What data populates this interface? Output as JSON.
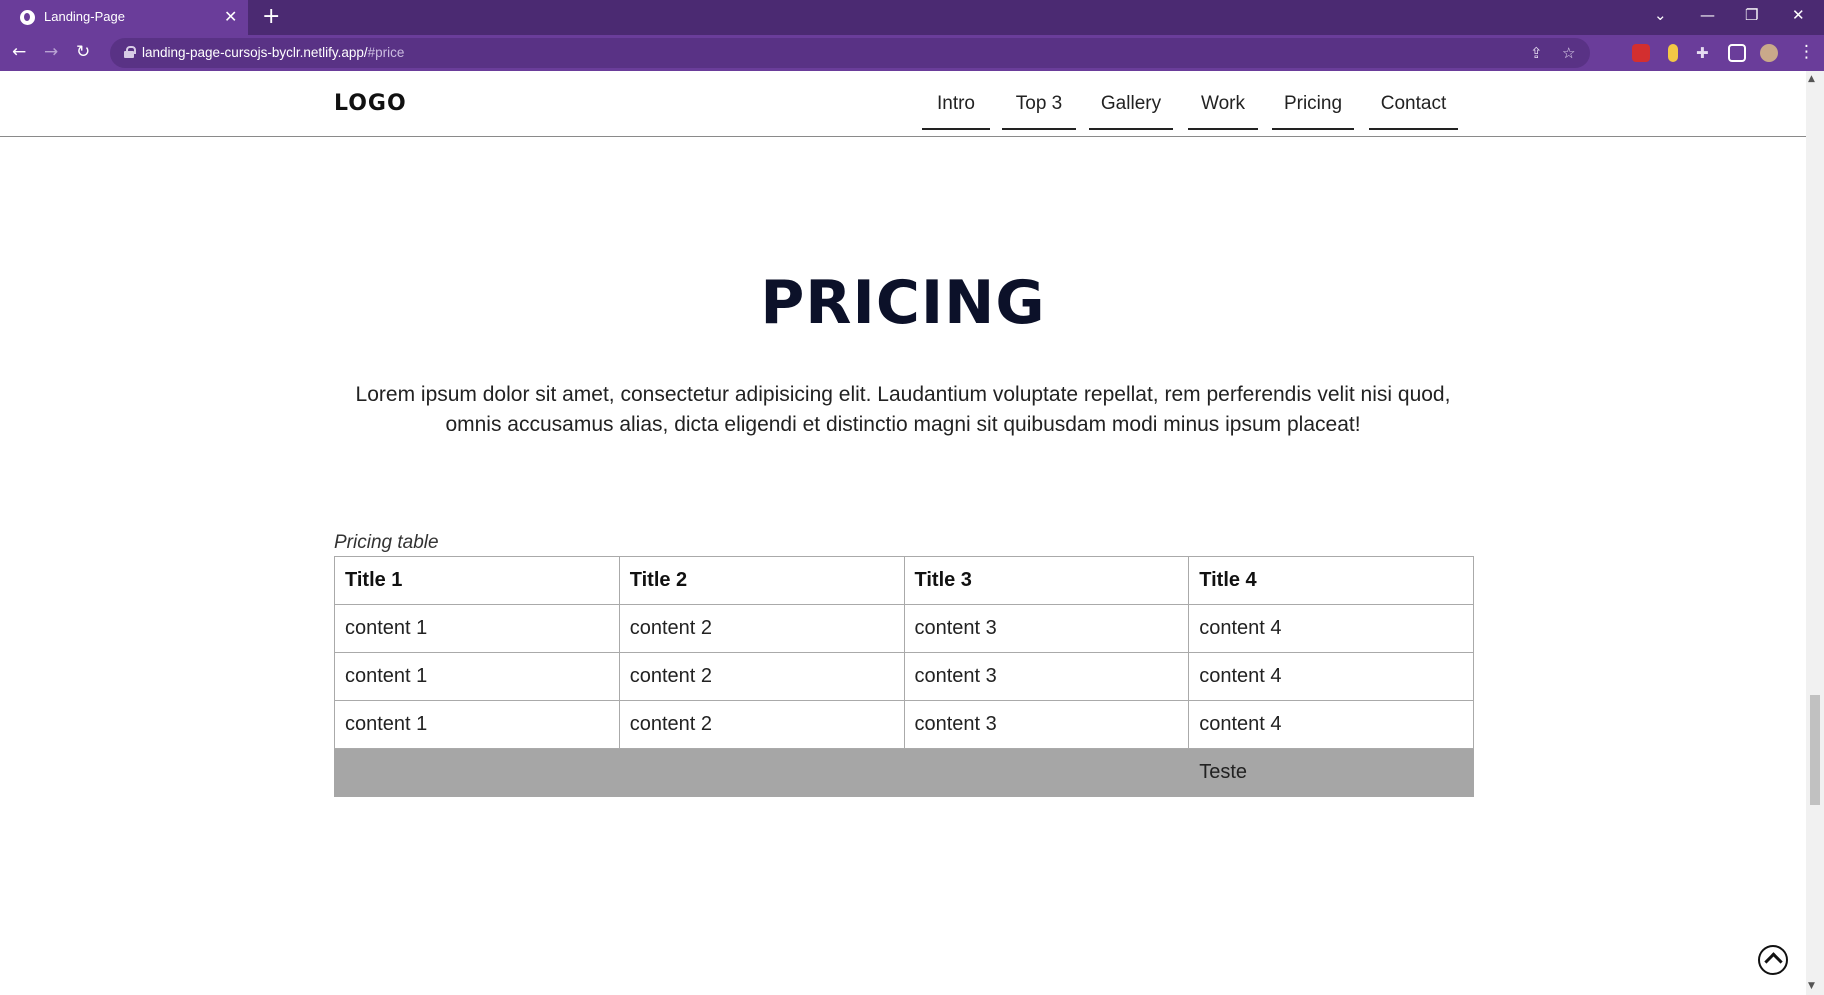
{
  "browser": {
    "tab_title": "Landing-Page",
    "tab_close": "✕",
    "new_tab": "+",
    "url_host": "landing-page-cursojs-byclr.netlify.app/",
    "url_path": "#price",
    "back": "←",
    "forward": "→",
    "reload": "↻",
    "tab_list": "⌄",
    "minimize": "—",
    "restore": "❐",
    "close": "✕",
    "menu": "⋮"
  },
  "header": {
    "logo": "LOGO",
    "nav": [
      {
        "label": "Intro"
      },
      {
        "label": "Top 3"
      },
      {
        "label": "Gallery"
      },
      {
        "label": "Work"
      },
      {
        "label": "Pricing"
      },
      {
        "label": "Contact"
      }
    ]
  },
  "section": {
    "title": "PRICING",
    "lead": "Lorem ipsum dolor sit amet, consectetur adipisicing elit. Laudantium voluptate repellat, rem perferendis velit nisi quod, omnis accusamus alias, dicta eligendi et distinctio magni sit quibusdam modi minus ipsum placeat!"
  },
  "table": {
    "caption": "Pricing table",
    "headers": [
      "Title 1",
      "Title 2",
      "Title 3",
      "Title 4"
    ],
    "rows": [
      [
        "content 1",
        "content 2",
        "content 3",
        "content 4"
      ],
      [
        "content 1",
        "content 2",
        "content 3",
        "content 4"
      ],
      [
        "content 1",
        "content 2",
        "content 3",
        "content 4"
      ]
    ],
    "footer": "Teste"
  },
  "colors": {
    "browser_frame": "#4b2a72",
    "toolbar": "#6a3d9a",
    "title_text": "#0c1129",
    "table_footer_bg": "#a6a6a6"
  }
}
